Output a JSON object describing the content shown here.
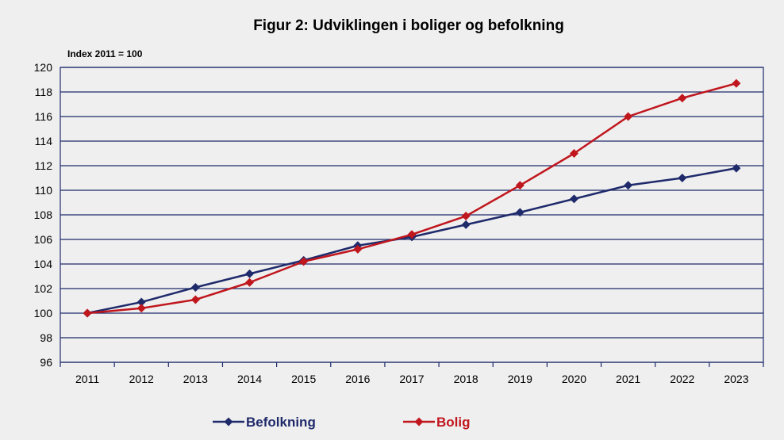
{
  "chart_data": {
    "type": "line",
    "title": "Figur 2:  Udviklingen i boliger og befolkning",
    "ylabel": "Index 2011 = 100",
    "xlabel": "",
    "categories": [
      "2011",
      "2012",
      "2013",
      "2014",
      "2015",
      "2016",
      "2017",
      "2018",
      "2019",
      "2020",
      "2021",
      "2022",
      "2023"
    ],
    "ylim": [
      96,
      120
    ],
    "yticks": [
      96,
      98,
      100,
      102,
      104,
      106,
      108,
      110,
      112,
      114,
      116,
      118,
      120
    ],
    "grid": true,
    "legend_position": "bottom",
    "series": [
      {
        "name": "Befolkning",
        "color": "#1f2a6b",
        "values": [
          100.0,
          100.9,
          102.1,
          103.2,
          104.3,
          105.5,
          106.2,
          107.2,
          108.2,
          109.3,
          110.4,
          111.0,
          111.8
        ]
      },
      {
        "name": "Bolig",
        "color": "#c0161d",
        "values": [
          100.0,
          100.4,
          101.1,
          102.5,
          104.2,
          105.2,
          106.4,
          107.9,
          110.4,
          113.0,
          116.0,
          117.5,
          118.7
        ]
      }
    ]
  },
  "colors": {
    "background": "#efefef",
    "gridline": "#1f2a6b",
    "axis": "#1f2a6b"
  }
}
